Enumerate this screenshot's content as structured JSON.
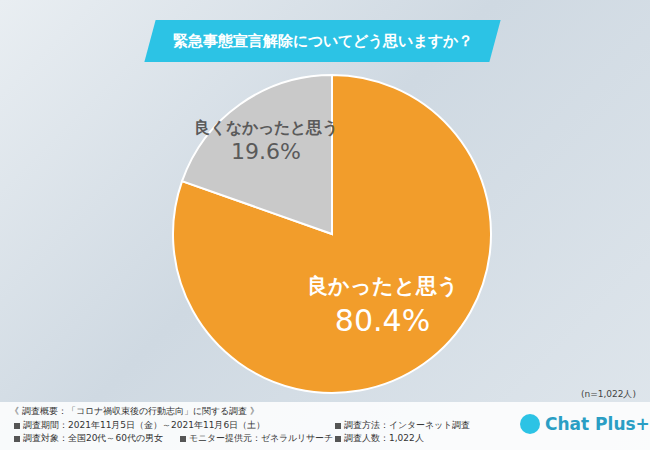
{
  "chart_data": {
    "type": "pie",
    "title": "緊急事態宣言解除についてどう思いますか？",
    "categories": [
      "良かったと思う",
      "良くなかったと思う"
    ],
    "values": [
      80.4,
      19.6
    ],
    "value_labels": [
      "80.4%",
      "19.6%"
    ],
    "colors": [
      "#f29d2b",
      "#c9c9c9"
    ],
    "data_labels": true,
    "annotations": [
      "(n=1,022人)"
    ]
  },
  "footer": {
    "heading": "《 調査概要：「コロナ禍収束後の行動志向」に関する調査 》",
    "items_left": [
      "調査期間：2021年11月5日（金）～2021年11月6日（土）",
      "調査対象：全国20代～60代の男女",
      "モニター提供元：ゼネラルリサーチ"
    ],
    "items_right": [
      "調査方法：インターネット調査",
      "調査人数：1,022人"
    ],
    "logo": "Chat Plus+"
  }
}
